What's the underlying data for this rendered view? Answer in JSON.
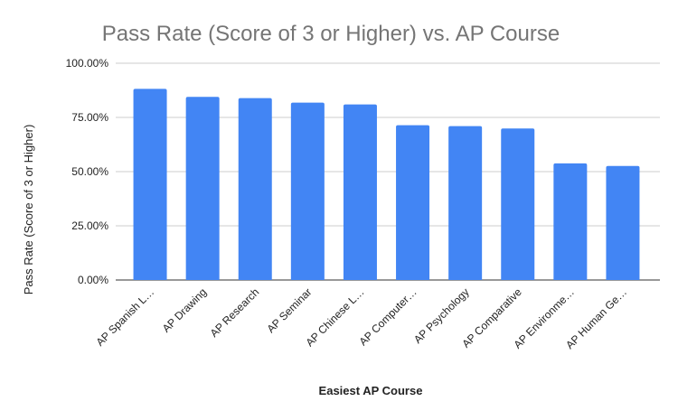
{
  "chart_data": {
    "type": "bar",
    "title": "Pass Rate (Score of 3 or Higher) vs. AP Course",
    "xlabel": "Easiest AP Course",
    "ylabel": "Pass Rate (Score of 3 or Higher)",
    "ylim": [
      0,
      100
    ],
    "yticks": [
      "0.00%",
      "25.00%",
      "50.00%",
      "75.00%",
      "100.00%"
    ],
    "grid": true,
    "color": "#4285F4",
    "categories": [
      "AP Spanish L…",
      "AP Drawing",
      "AP Research",
      "AP Seminar",
      "AP Chinese L…",
      "AP Computer…",
      "AP Psychology",
      "AP Comparative",
      "AP Environme…",
      "AP Human Ge…"
    ],
    "values": [
      88.2,
      84.5,
      83.9,
      81.8,
      81.0,
      71.4,
      71.0,
      69.9,
      53.8,
      52.6
    ]
  }
}
